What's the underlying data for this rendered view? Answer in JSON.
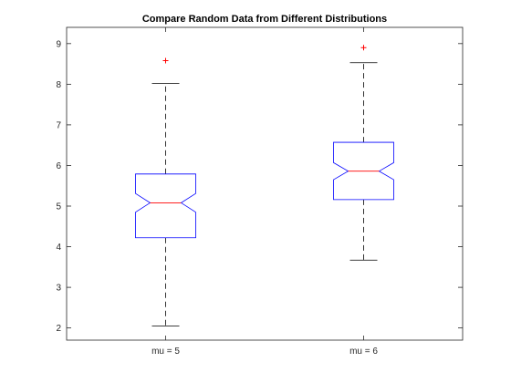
{
  "chart_data": {
    "type": "boxplot",
    "title": "Compare Random Data from Different Distributions",
    "xlabel": "",
    "ylabel": "",
    "categories": [
      "mu = 5",
      "mu = 6"
    ],
    "ylim": [
      1.7,
      9.4
    ],
    "yticks": [
      2,
      3,
      4,
      5,
      6,
      7,
      8,
      9
    ],
    "notched": true,
    "grid": false,
    "boxes": [
      {
        "category": "mu = 5",
        "whisker_low": 2.05,
        "q1": 4.22,
        "median": 5.08,
        "q3": 5.79,
        "whisker_high": 8.02,
        "notch_low": 4.85,
        "notch_high": 5.31,
        "outliers": [
          8.58
        ]
      },
      {
        "category": "mu = 6",
        "whisker_low": 3.67,
        "q1": 5.16,
        "median": 5.86,
        "q3": 6.57,
        "whisker_high": 8.53,
        "notch_low": 5.65,
        "notch_high": 6.07,
        "outliers": [
          8.9
        ]
      }
    ],
    "colors": {
      "box": "#0000ff",
      "median": "#ff0000",
      "whisker": "#000000",
      "outlier": "#ff0000"
    }
  }
}
